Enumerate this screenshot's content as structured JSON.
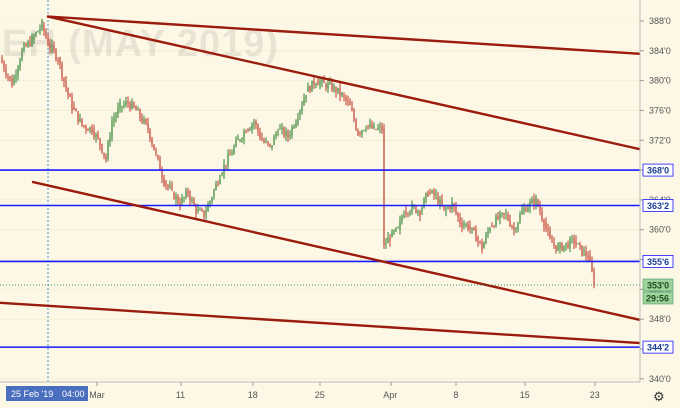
{
  "chart_data": {
    "type": "candlestick",
    "watermark": "EH (MAY 2019)",
    "y_axis": {
      "range": [
        340.0,
        390.0
      ],
      "ticks": [
        "388'0",
        "384'0",
        "380'0",
        "376'0",
        "372'0",
        "368'0",
        "364'0",
        "360'0",
        "356'0",
        "352'0",
        "348'0",
        "344'0",
        "340'0"
      ],
      "tick_values": [
        388,
        384,
        380,
        376,
        372,
        368,
        364,
        360,
        356,
        352,
        348,
        344,
        340
      ]
    },
    "x_axis": {
      "ticks": [
        "25 Feb '19",
        "04:00",
        "Mar",
        "11",
        "18",
        "25",
        "Apr",
        "8",
        "15",
        "23"
      ],
      "crosshair_label": {
        "date": "25 Feb '19",
        "time": "04:00"
      }
    },
    "horizontal_levels": [
      {
        "label": "368'0",
        "value": 368.0,
        "color": "#1a1aff"
      },
      {
        "label": "363'2",
        "value": 363.25,
        "color": "#1a1aff"
      },
      {
        "label": "355'6",
        "value": 355.75,
        "color": "#1a1aff"
      },
      {
        "label": "344'2",
        "value": 344.25,
        "color": "#1a1aff"
      }
    ],
    "trendlines": [
      {
        "name": "upper-channel",
        "from": {
          "x": "25 Feb '19",
          "y": 388.6
        },
        "to": {
          "x": "end",
          "y": 383.6
        },
        "color": "#9b1b0c"
      },
      {
        "name": "descending-resistance",
        "from": {
          "x": "25 Feb '19",
          "y": 388.6
        },
        "to": {
          "x": "end",
          "y": 370.8
        },
        "color": "#9b1b0c"
      },
      {
        "name": "descending-support",
        "from": {
          "x": "21 Feb '19",
          "y": 366.4
        },
        "to": {
          "x": "end",
          "y": 347.9
        },
        "color": "#9b1b0c"
      },
      {
        "name": "lower-channel",
        "from": {
          "x": "start",
          "y": 350.2
        },
        "to": {
          "x": "end",
          "y": 344.8
        },
        "color": "#9b1b0c"
      }
    ],
    "last_price": {
      "label": "353'0",
      "value": 353.0,
      "countdown": "29:56"
    },
    "price_path": [
      [
        0,
        383.0
      ],
      [
        12,
        379.5
      ],
      [
        22,
        384.0
      ],
      [
        32,
        385.5
      ],
      [
        42,
        387.5
      ],
      [
        48,
        385.0
      ],
      [
        58,
        383.0
      ],
      [
        66,
        379.0
      ],
      [
        72,
        376.5
      ],
      [
        82,
        374.0
      ],
      [
        92,
        373.5
      ],
      [
        100,
        371.5
      ],
      [
        106,
        369.5
      ],
      [
        112,
        374.5
      ],
      [
        120,
        376.5
      ],
      [
        128,
        377.0
      ],
      [
        136,
        376.0
      ],
      [
        148,
        373.5
      ],
      [
        156,
        370.0
      ],
      [
        164,
        366.5
      ],
      [
        172,
        365.0
      ],
      [
        180,
        363.5
      ],
      [
        188,
        365.0
      ],
      [
        196,
        362.5
      ],
      [
        204,
        362.0
      ],
      [
        212,
        364.5
      ],
      [
        220,
        367.5
      ],
      [
        230,
        370.0
      ],
      [
        238,
        372.0
      ],
      [
        246,
        373.5
      ],
      [
        254,
        374.5
      ],
      [
        262,
        372.0
      ],
      [
        270,
        371.0
      ],
      [
        278,
        373.5
      ],
      [
        288,
        372.5
      ],
      [
        298,
        375.5
      ],
      [
        306,
        378.5
      ],
      [
        316,
        380.0
      ],
      [
        324,
        379.5
      ],
      [
        334,
        379.0
      ],
      [
        342,
        378.0
      ],
      [
        350,
        376.5
      ],
      [
        358,
        373.0
      ],
      [
        366,
        374.0
      ],
      [
        374,
        373.5
      ],
      [
        382,
        373.5
      ],
      [
        384,
        358.0
      ],
      [
        390,
        359.0
      ],
      [
        398,
        360.0
      ],
      [
        404,
        362.5
      ],
      [
        412,
        363.0
      ],
      [
        420,
        362.5
      ],
      [
        428,
        365.0
      ],
      [
        436,
        364.5
      ],
      [
        444,
        362.5
      ],
      [
        452,
        363.5
      ],
      [
        460,
        361.0
      ],
      [
        468,
        360.5
      ],
      [
        476,
        359.0
      ],
      [
        482,
        357.5
      ],
      [
        490,
        360.5
      ],
      [
        498,
        361.5
      ],
      [
        506,
        362.0
      ],
      [
        514,
        360.0
      ],
      [
        522,
        362.5
      ],
      [
        530,
        363.5
      ],
      [
        536,
        364.0
      ],
      [
        544,
        361.0
      ],
      [
        550,
        358.5
      ],
      [
        558,
        357.5
      ],
      [
        566,
        358.0
      ],
      [
        574,
        358.5
      ],
      [
        582,
        357.0
      ],
      [
        588,
        356.5
      ],
      [
        594,
        353.0
      ]
    ]
  }
}
